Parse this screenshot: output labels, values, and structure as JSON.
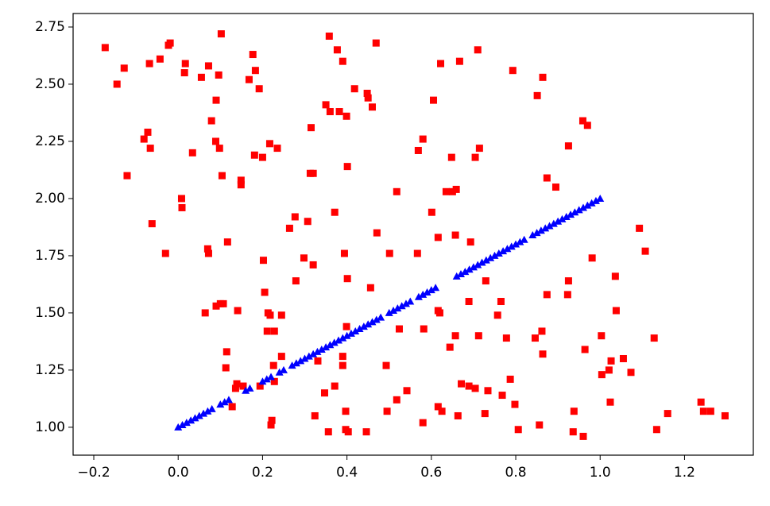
{
  "chart_data": {
    "type": "scatter",
    "xlim": [
      -0.249,
      1.363
    ],
    "ylim": [
      0.878,
      2.809
    ],
    "xticks": [
      {
        "value": -0.2,
        "label": "−0.2"
      },
      {
        "value": 0,
        "label": "0.0"
      },
      0.2,
      0.4,
      0.6,
      0.8,
      {
        "value": 1,
        "label": "1.0"
      },
      1.2
    ],
    "yticks": [
      {
        "value": 1,
        "label": "1.00"
      },
      1.25,
      {
        "value": 1.5,
        "label": "1.50"
      },
      1.75,
      {
        "value": 2,
        "label": "2.00"
      },
      2.25,
      {
        "value": 2.5,
        "label": "2.50"
      },
      2.75
    ],
    "series": [
      {
        "color": "#ff0000",
        "marker": "square",
        "x": [
          -0.173,
          -0.128,
          -0.145,
          -0.068,
          -0.043,
          -0.023,
          -0.019,
          0.017,
          0.015,
          0.055,
          0.072,
          0.096,
          0.102,
          0.09,
          0.079,
          -0.072,
          -0.081,
          -0.066,
          0.034,
          0.089,
          0.098,
          -0.121,
          0.104,
          0.149,
          0.149,
          0.008,
          0.009,
          -0.062,
          -0.03,
          0.07,
          0.072,
          0.117,
          0.064,
          0.09,
          0.1,
          0.107,
          0.141,
          0.115,
          0.113,
          0.128,
          0.136,
          0.154,
          0.139,
          0.177,
          0.183,
          0.168,
          0.192,
          0.181,
          0.2,
          0.217,
          0.235,
          0.202,
          0.205,
          0.213,
          0.218,
          0.211,
          0.228,
          0.245,
          0.245,
          0.226,
          0.228,
          0.194,
          0.222,
          0.22,
          0.264,
          0.277,
          0.279,
          0.307,
          0.313,
          0.315,
          0.32,
          0.298,
          0.32,
          0.331,
          0.347,
          0.324,
          0.356,
          0.35,
          0.36,
          0.382,
          0.399,
          0.358,
          0.377,
          0.39,
          0.371,
          0.394,
          0.401,
          0.401,
          0.418,
          0.448,
          0.45,
          0.46,
          0.469,
          0.471,
          0.456,
          0.399,
          0.371,
          0.39,
          0.39,
          0.397,
          0.397,
          0.403,
          0.446,
          0.518,
          0.501,
          0.493,
          0.495,
          0.518,
          0.524,
          0.542,
          0.569,
          0.58,
          0.567,
          0.582,
          0.58,
          0.601,
          0.605,
          0.616,
          0.622,
          0.616,
          0.62,
          0.616,
          0.625,
          0.635,
          0.65,
          0.659,
          0.648,
          0.657,
          0.657,
          0.644,
          0.663,
          0.667,
          0.71,
          0.704,
          0.714,
          0.693,
          0.729,
          0.689,
          0.712,
          0.671,
          0.689,
          0.704,
          0.734,
          0.727,
          0.765,
          0.757,
          0.778,
          0.768,
          0.787,
          0.798,
          0.806,
          0.793,
          0.851,
          0.864,
          0.874,
          0.895,
          0.874,
          0.925,
          0.923,
          0.925,
          0.959,
          0.97,
          0.981,
          0.846,
          0.862,
          0.864,
          0.856,
          0.938,
          0.936,
          0.96,
          0.964,
          1.003,
          1.004,
          1.021,
          1.026,
          1.036,
          1.038,
          1.055,
          1.024,
          1.073,
          1.093,
          1.107,
          1.128,
          1.134,
          1.16,
          1.239,
          1.245,
          1.262,
          1.296
        ],
        "y": [
          2.66,
          2.57,
          2.5,
          2.59,
          2.61,
          2.67,
          2.68,
          2.59,
          2.55,
          2.53,
          2.58,
          2.54,
          2.72,
          2.43,
          2.34,
          2.29,
          2.26,
          2.22,
          2.2,
          2.25,
          2.22,
          2.1,
          2.1,
          2.08,
          2.06,
          2,
          1.96,
          1.89,
          1.76,
          1.78,
          1.76,
          1.81,
          1.5,
          1.53,
          1.54,
          1.54,
          1.51,
          1.33,
          1.26,
          1.09,
          1.17,
          1.18,
          1.19,
          2.63,
          2.56,
          2.52,
          2.48,
          2.19,
          2.18,
          2.24,
          2.22,
          1.73,
          1.59,
          1.5,
          1.49,
          1.42,
          1.42,
          1.49,
          1.31,
          1.27,
          1.2,
          1.18,
          1.03,
          1.01,
          1.87,
          1.92,
          1.64,
          1.9,
          2.11,
          2.31,
          2.11,
          1.74,
          1.71,
          1.29,
          1.15,
          1.05,
          0.98,
          2.41,
          2.38,
          2.38,
          2.36,
          2.71,
          2.65,
          2.6,
          1.94,
          1.76,
          1.65,
          2.14,
          2.48,
          2.46,
          2.44,
          2.4,
          2.68,
          1.85,
          1.61,
          1.44,
          1.18,
          1.31,
          1.27,
          1.07,
          0.99,
          0.98,
          0.98,
          2.03,
          1.76,
          1.27,
          1.07,
          1.12,
          1.43,
          1.16,
          2.21,
          2.26,
          1.76,
          1.43,
          1.02,
          1.94,
          2.43,
          1.83,
          2.59,
          1.51,
          1.5,
          1.09,
          1.07,
          2.03,
          2.03,
          2.04,
          2.18,
          1.84,
          1.4,
          1.35,
          1.05,
          2.6,
          2.65,
          2.18,
          2.22,
          1.81,
          1.64,
          1.55,
          1.4,
          1.19,
          1.18,
          1.17,
          1.16,
          1.06,
          1.55,
          1.49,
          1.39,
          1.14,
          1.21,
          1.1,
          0.99,
          2.56,
          2.45,
          2.53,
          2.09,
          2.05,
          1.58,
          1.64,
          1.58,
          2.23,
          2.34,
          2.32,
          1.74,
          1.39,
          1.42,
          1.32,
          1.01,
          1.07,
          0.98,
          0.96,
          1.34,
          1.4,
          1.23,
          1.25,
          1.29,
          1.66,
          1.51,
          1.3,
          1.11,
          1.24,
          1.87,
          1.77,
          1.39,
          0.99,
          1.06,
          1.11,
          1.07,
          1.07,
          1.05
        ]
      },
      {
        "color": "#0000ff",
        "marker": "triangle",
        "x": [
          0,
          0.01,
          0.02,
          0.03,
          0.04,
          0.05,
          0.06,
          0.07,
          0.08,
          0.1,
          0.11,
          0.12,
          0.16,
          0.17,
          0.2,
          0.21,
          0.22,
          0.24,
          0.25,
          0.27,
          0.28,
          0.29,
          0.3,
          0.31,
          0.32,
          0.33,
          0.34,
          0.35,
          0.36,
          0.37,
          0.38,
          0.39,
          0.4,
          0.41,
          0.42,
          0.43,
          0.44,
          0.45,
          0.46,
          0.47,
          0.48,
          0.5,
          0.51,
          0.52,
          0.53,
          0.54,
          0.55,
          0.57,
          0.58,
          0.59,
          0.6,
          0.61,
          0.66,
          0.67,
          0.68,
          0.69,
          0.7,
          0.71,
          0.72,
          0.73,
          0.74,
          0.75,
          0.76,
          0.77,
          0.78,
          0.79,
          0.8,
          0.81,
          0.82,
          0.84,
          0.85,
          0.86,
          0.87,
          0.88,
          0.89,
          0.9,
          0.91,
          0.92,
          0.93,
          0.94,
          0.95,
          0.96,
          0.97,
          0.98,
          0.99,
          1
        ],
        "y": [
          1,
          1.01,
          1.02,
          1.03,
          1.04,
          1.05,
          1.06,
          1.07,
          1.08,
          1.1,
          1.11,
          1.12,
          1.16,
          1.17,
          1.2,
          1.21,
          1.22,
          1.24,
          1.25,
          1.27,
          1.28,
          1.29,
          1.3,
          1.31,
          1.32,
          1.33,
          1.34,
          1.35,
          1.36,
          1.37,
          1.38,
          1.39,
          1.4,
          1.41,
          1.42,
          1.43,
          1.44,
          1.45,
          1.46,
          1.47,
          1.48,
          1.5,
          1.51,
          1.52,
          1.53,
          1.54,
          1.55,
          1.57,
          1.58,
          1.59,
          1.6,
          1.61,
          1.66,
          1.67,
          1.68,
          1.69,
          1.7,
          1.71,
          1.72,
          1.73,
          1.74,
          1.75,
          1.76,
          1.77,
          1.78,
          1.79,
          1.8,
          1.81,
          1.82,
          1.84,
          1.85,
          1.86,
          1.87,
          1.88,
          1.89,
          1.9,
          1.91,
          1.92,
          1.93,
          1.94,
          1.95,
          1.96,
          1.97,
          1.98,
          1.99,
          2
        ]
      }
    ]
  }
}
